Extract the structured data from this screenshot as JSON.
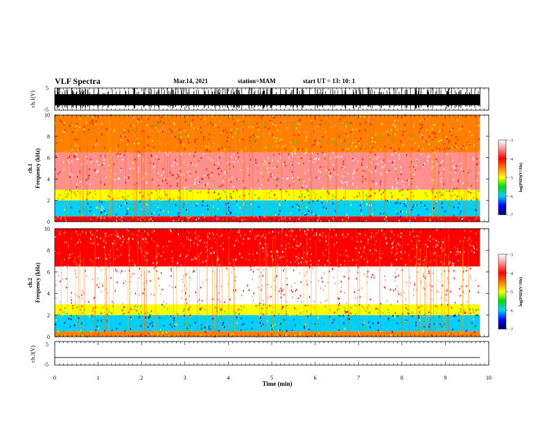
{
  "header": {
    "title": "VLF Spectra",
    "date": "Mar.14, 2021",
    "station": "station=MAM",
    "start": "start  UT =  13: 10: 1"
  },
  "panels": {
    "ch1v": {
      "label": "ch.1(V)",
      "ticks": [
        "5",
        "-5"
      ]
    },
    "ch1": {
      "label1": "ch.1",
      "label2": "Frequency (kHz)",
      "ticks": [
        "0",
        "2",
        "4",
        "6",
        "8",
        "10"
      ]
    },
    "ch2": {
      "label1": "ch.2",
      "label2": "Frequency (kHz)",
      "ticks": [
        "0",
        "2",
        "4",
        "6",
        "8",
        "10"
      ]
    },
    "ch3v": {
      "label": "ch.3(V)",
      "ticks": [
        "5",
        "-5"
      ]
    }
  },
  "xaxis": {
    "label": "Time  (min)",
    "ticks": [
      "0",
      "1",
      "2",
      "3",
      "4",
      "5",
      "6",
      "7",
      "8",
      "9",
      "10"
    ]
  },
  "colorbar": {
    "label": "log(PSD)(V²/Hz)",
    "ticks": [
      "-3",
      "-4",
      "-5",
      "-6",
      "-7"
    ],
    "colors": [
      "#ffffff",
      "#ff9090",
      "#ff0000",
      "#ff8000",
      "#ffff00",
      "#00e000",
      "#00d0ff",
      "#0000ff",
      "#000060"
    ]
  },
  "chart_data": {
    "type": "heatmap",
    "title": "VLF Spectra",
    "xlabel": "Time  (min)",
    "ylabel": "Frequency (kHz)",
    "xlim": [
      0,
      10
    ],
    "ylim": [
      0,
      10
    ],
    "data_end_min": 9.8,
    "color_scale": {
      "label": "log(PSD)(V²/Hz)",
      "range": [
        -7,
        -3
      ]
    },
    "channels": [
      {
        "name": "ch.1",
        "bands": [
          {
            "freq_khz": [
              0,
              0.5
            ],
            "log_psd": -4.0
          },
          {
            "freq_khz": [
              0.5,
              2.0
            ],
            "log_psd": -5.8
          },
          {
            "freq_khz": [
              2.0,
              3.0
            ],
            "log_psd": -4.8
          },
          {
            "freq_khz": [
              3.0,
              6.5
            ],
            "log_psd": -3.6
          },
          {
            "freq_khz": [
              6.5,
              10.0
            ],
            "log_psd": -4.4
          }
        ]
      },
      {
        "name": "ch.2",
        "bands": [
          {
            "freq_khz": [
              0,
              0.5
            ],
            "log_psd": -4.5
          },
          {
            "freq_khz": [
              0.5,
              2.0
            ],
            "log_psd": -6.0
          },
          {
            "freq_khz": [
              2.0,
              3.0
            ],
            "log_psd": -4.8
          },
          {
            "freq_khz": [
              3.0,
              6.5
            ],
            "log_psd": -3.3
          },
          {
            "freq_khz": [
              6.5,
              10.0
            ],
            "log_psd": -4.0
          }
        ]
      }
    ],
    "waveforms": [
      {
        "name": "ch.1(V)",
        "ylim": [
          -5,
          5
        ],
        "description_value": "saturated"
      },
      {
        "name": "ch.3(V)",
        "ylim": [
          -5,
          5
        ],
        "value": -1.8
      }
    ]
  }
}
